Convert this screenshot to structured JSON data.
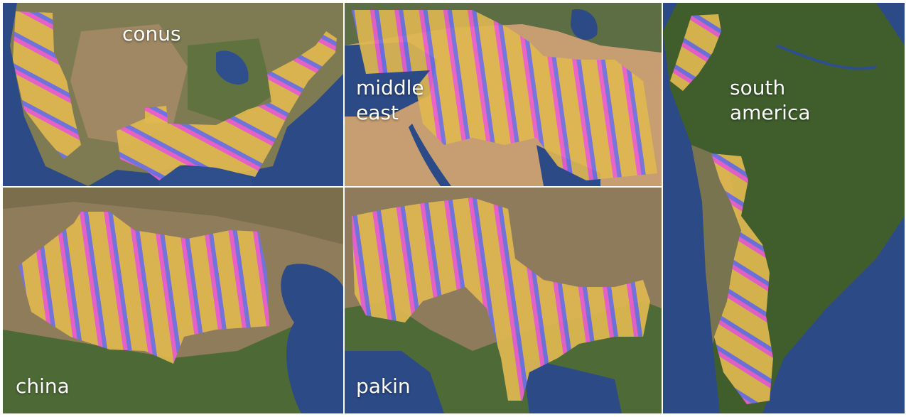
{
  "panels": {
    "conus": {
      "label": "conus"
    },
    "middle_east": {
      "label": "middle\neast"
    },
    "south_america": {
      "label": "south\namerica"
    },
    "china": {
      "label": "china"
    },
    "pakin": {
      "label": "pakin"
    }
  },
  "colors": {
    "stripe_yellow": "#e0b850",
    "stripe_magenta": "#ee5fcf",
    "stripe_blue": "#6f72e6",
    "ocean": "#2c4a86",
    "land_green": "#4d6a36",
    "land_brown": "#9a8160",
    "desert": "#d2a678"
  }
}
